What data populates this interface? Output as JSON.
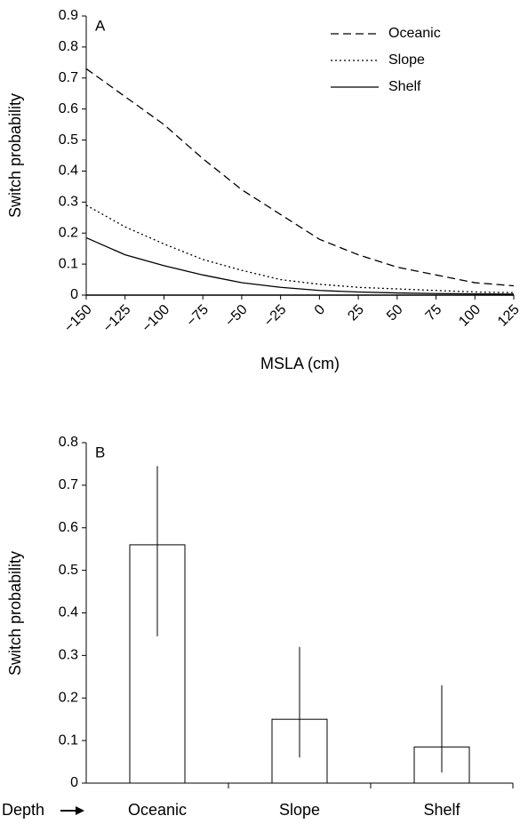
{
  "chart_data": [
    {
      "type": "line",
      "panel_label": "A",
      "xlabel": "MSLA (cm)",
      "ylabel": "Switch probability",
      "x": [
        -150,
        -125,
        -100,
        -75,
        -50,
        -25,
        0,
        25,
        50,
        75,
        100,
        125
      ],
      "series": [
        {
          "name": "Oceanic",
          "color": "#000000",
          "style": "dashed",
          "values": [
            0.73,
            0.64,
            0.55,
            0.44,
            0.34,
            0.26,
            0.18,
            0.13,
            0.09,
            0.065,
            0.04,
            0.03
          ]
        },
        {
          "name": "Slope",
          "color": "#000000",
          "style": "dotted",
          "values": [
            0.29,
            0.22,
            0.165,
            0.115,
            0.08,
            0.05,
            0.035,
            0.025,
            0.02,
            0.015,
            0.01,
            0.008
          ]
        },
        {
          "name": "Shelf",
          "color": "#000000",
          "style": "solid",
          "values": [
            0.185,
            0.13,
            0.095,
            0.065,
            0.04,
            0.025,
            0.015,
            0.01,
            0.007,
            0.005,
            0.004,
            0.003
          ]
        }
      ],
      "xlim": [
        -150,
        125
      ],
      "xticks": [
        {
          "value": -150,
          "label": "−150"
        },
        {
          "value": -125,
          "label": "−125"
        },
        {
          "value": -100,
          "label": "−100"
        },
        {
          "value": -75,
          "label": "−75"
        },
        {
          "value": -50,
          "label": "−50"
        },
        {
          "value": -25,
          "label": "−25"
        },
        0,
        25,
        50,
        75,
        100,
        125
      ],
      "ylim": [
        0,
        0.9
      ],
      "yticks": [
        0,
        0.1,
        0.2,
        0.3,
        0.4,
        0.5,
        0.6,
        0.7,
        0.8,
        0.9
      ],
      "legend": "upper right"
    },
    {
      "type": "bar",
      "panel_label": "B",
      "xlabel": "Depth",
      "ylabel": "Switch probability",
      "categories": [
        "Oceanic",
        "Slope",
        "Shelf"
      ],
      "values": [
        0.56,
        0.15,
        0.085
      ],
      "ci_low": [
        0.345,
        0.06,
        0.025
      ],
      "ci_high": [
        0.745,
        0.32,
        0.23
      ],
      "color": "#ffffff",
      "ylim": [
        0,
        0.8
      ],
      "yticks": [
        0,
        0.1,
        0.2,
        0.3,
        0.4,
        0.5,
        0.6,
        0.7,
        0.8
      ]
    }
  ]
}
